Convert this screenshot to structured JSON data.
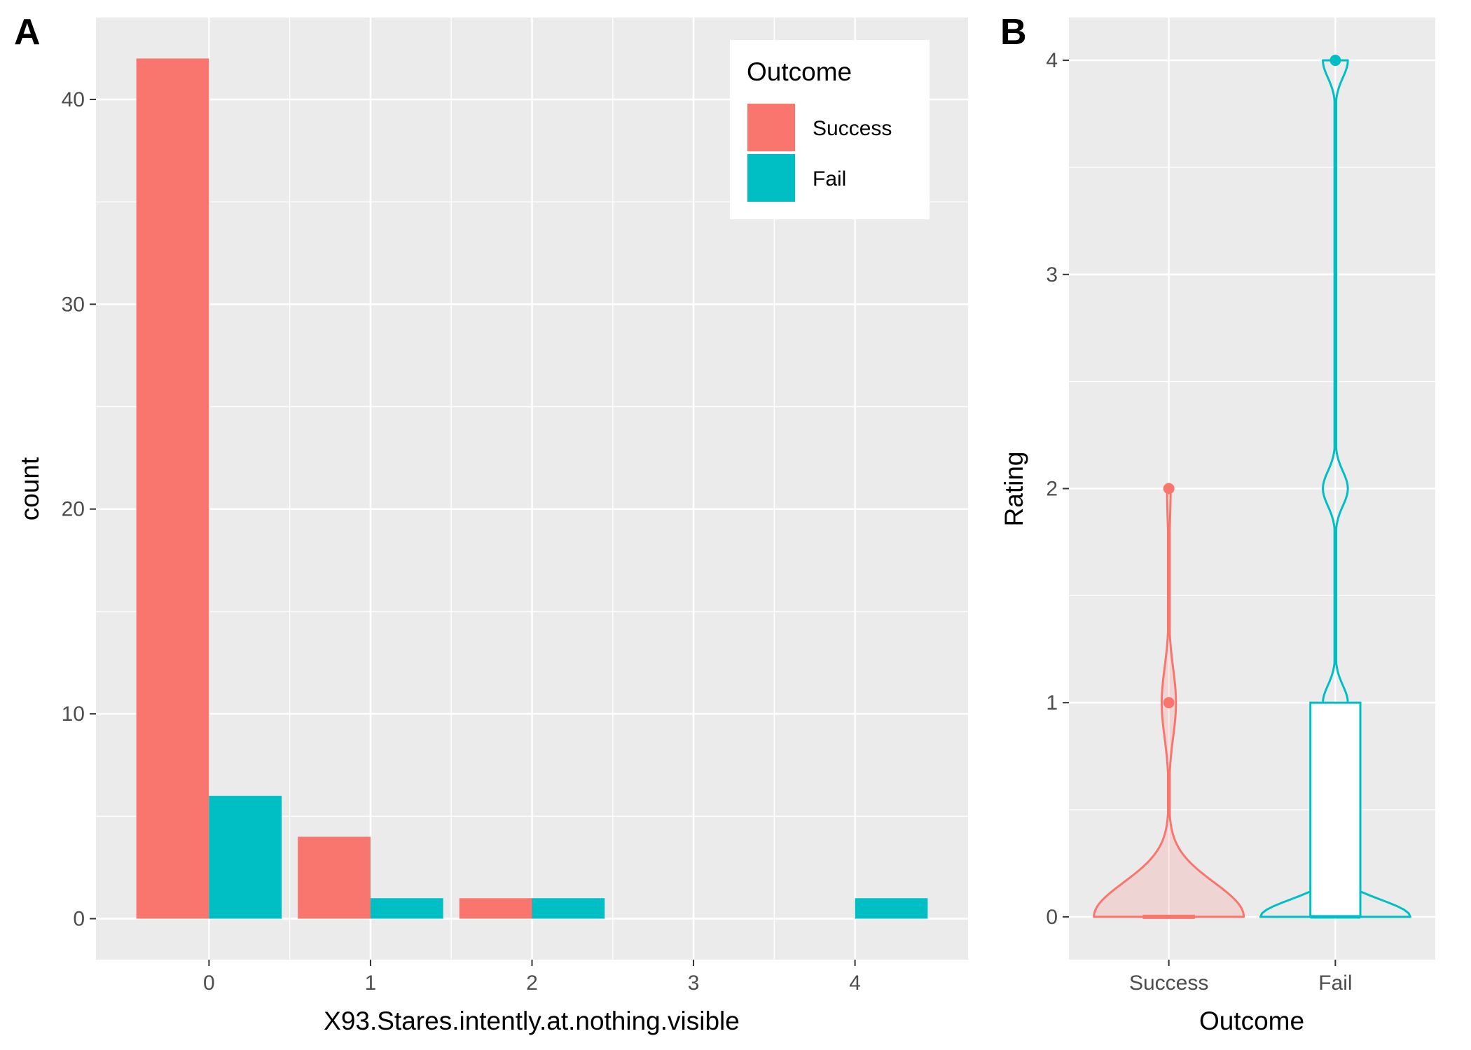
{
  "figure": {
    "panel_labels": [
      "A",
      "B"
    ]
  },
  "colors": {
    "panel_bg": "#EBEBEB",
    "grid": "#FFFFFF",
    "success": "#F8766D",
    "fail": "#00BFC4",
    "tick_text": "#4D4D4D"
  },
  "chart_data": [
    {
      "type": "bar",
      "position": "dodge",
      "title": "",
      "xlabel": "X93.Stares.intently.at.nothing.visible",
      "ylabel": "count",
      "categories": [
        0,
        1,
        2,
        3,
        4
      ],
      "x_ticks": [
        "0",
        "1",
        "2",
        "3",
        "4"
      ],
      "y_ticks": [
        "0",
        "10",
        "20",
        "30",
        "40"
      ],
      "xlim": [
        -0.7,
        4.7
      ],
      "ylim": [
        -2,
        44
      ],
      "series": [
        {
          "name": "Success",
          "values": [
            42,
            4,
            1,
            0,
            0
          ]
        },
        {
          "name": "Fail",
          "values": [
            6,
            1,
            1,
            0,
            1
          ]
        }
      ],
      "legend": {
        "title": "Outcome",
        "entries": [
          "Success",
          "Fail"
        ],
        "placement": "top-right"
      },
      "grid": true
    },
    {
      "type": "violin",
      "overlay": "boxplot",
      "title": "",
      "xlabel": "Outcome",
      "ylabel": "Rating",
      "categories": [
        "Success",
        "Fail"
      ],
      "y_ticks": [
        "0",
        "1",
        "2",
        "3",
        "4"
      ],
      "ylim": [
        -0.2,
        4.2
      ],
      "groups": [
        {
          "name": "Success",
          "counts": {
            "0": 42,
            "1": 4,
            "2": 1
          },
          "box": {
            "q1": 0,
            "median": 0,
            "q3": 0,
            "whisker_low": 0,
            "whisker_high": 0
          },
          "outliers": [
            1,
            2
          ]
        },
        {
          "name": "Fail",
          "counts": {
            "0": 6,
            "1": 1,
            "2": 1,
            "4": 1
          },
          "box": {
            "q1": 0,
            "median": 0,
            "q3": 1,
            "whisker_low": 0,
            "whisker_high": 1
          },
          "outliers": [
            4
          ]
        }
      ],
      "grid": true
    }
  ]
}
